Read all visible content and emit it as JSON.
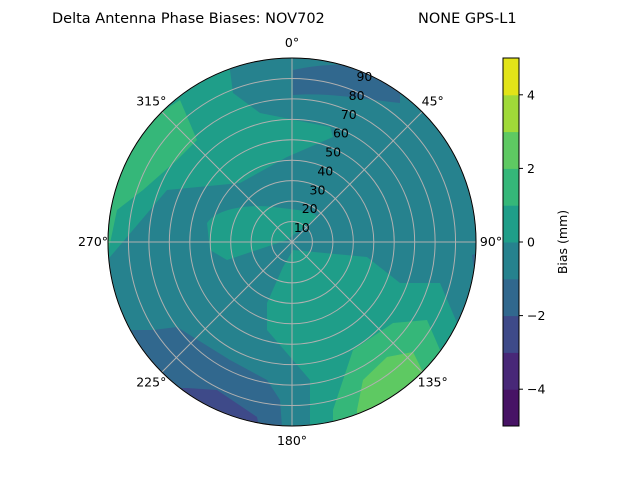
{
  "chart_data": {
    "type": "polar-contour",
    "title_left": "Delta Antenna Phase Biases: NOV702",
    "title_right": "NONE GPS-L1",
    "angle_labels": [
      "0°",
      "45°",
      "90°",
      "135°",
      "180°",
      "225°",
      "270°",
      "315°"
    ],
    "angle_values": [
      0,
      45,
      90,
      135,
      180,
      225,
      270,
      315
    ],
    "radial_ticks": [
      "10",
      "20",
      "30",
      "40",
      "50",
      "60",
      "70",
      "80",
      "90"
    ],
    "radial_range": [
      0,
      90
    ],
    "grid": true,
    "colorbar": {
      "label": "Bias (mm)",
      "levels": [
        -5,
        -4,
        -3,
        -2,
        -1,
        0,
        1,
        2,
        3,
        4,
        5
      ],
      "tick_labels": [
        "−4",
        "−2",
        "0",
        "2",
        "4"
      ],
      "tick_values": [
        -4,
        -2,
        0,
        2,
        4
      ],
      "colors": [
        "#471365",
        "#482878",
        "#3e4a89",
        "#31688e",
        "#26828e",
        "#1f9e89",
        "#35b779",
        "#5ec962",
        "#a0da39",
        "#e2e418"
      ],
      "colormap": "viridis"
    },
    "regions": [
      {
        "level_range": [
          -1,
          0
        ],
        "description": "background"
      },
      {
        "level_range": [
          0,
          1
        ]
      },
      {
        "level_range": [
          1,
          2
        ]
      },
      {
        "level_range": [
          2,
          3
        ]
      },
      {
        "level_range": [
          -2,
          -1
        ]
      },
      {
        "level_range": [
          -3,
          -2
        ]
      }
    ]
  }
}
